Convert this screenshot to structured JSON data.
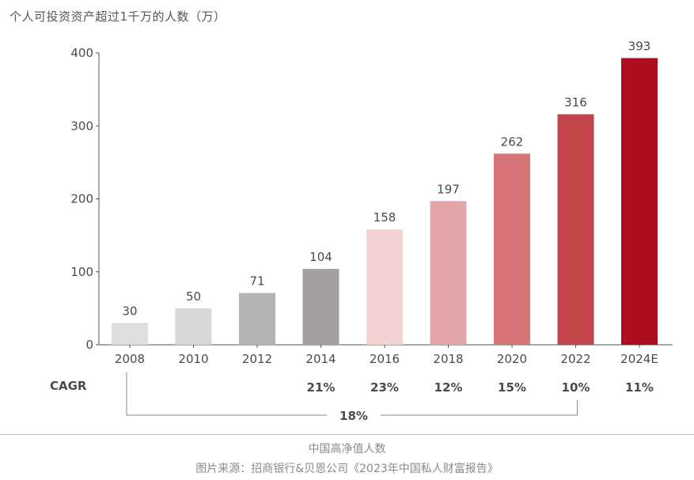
{
  "chart_data": {
    "type": "bar",
    "title": "个人可投资资产超过1千万的人数（万）",
    "categories": [
      "2008",
      "2010",
      "2012",
      "2014",
      "2016",
      "2018",
      "2020",
      "2022",
      "2024E"
    ],
    "values": [
      30,
      50,
      71,
      104,
      158,
      197,
      262,
      316,
      393
    ],
    "data_labels": [
      "30",
      "50",
      "71",
      "104",
      "158",
      "197",
      "262",
      "316",
      "393"
    ],
    "bar_colors": [
      "#dedede",
      "#d8d8d8",
      "#b4b4b4",
      "#a29f9e",
      "#f2d2d3",
      "#e2a5a8",
      "#d77478",
      "#c2454c",
      "#ae0c1f"
    ],
    "ylim": [
      0,
      400
    ],
    "yticks": [
      0,
      100,
      200,
      300,
      400
    ],
    "ytick_labels": [
      "0",
      "100",
      "200",
      "300",
      "400"
    ],
    "grid": false,
    "xlabel": "",
    "ylabel": "",
    "cagr": {
      "label": "CAGR",
      "values": [
        "",
        "",
        "",
        "21%",
        "23%",
        "12%",
        "15%",
        "10%",
        "11%"
      ],
      "overall": {
        "value": "18%",
        "from": "2008",
        "to": "2022"
      }
    }
  },
  "footer": {
    "caption": "中国高净值人数",
    "source": "图片来源：招商银行&贝恩公司《2023年中国私人财富报告》"
  },
  "colors": {
    "axis": "#555555",
    "text": "#4a4a4a",
    "divider": "#d9b77a",
    "caption": "#8a8a8a"
  }
}
